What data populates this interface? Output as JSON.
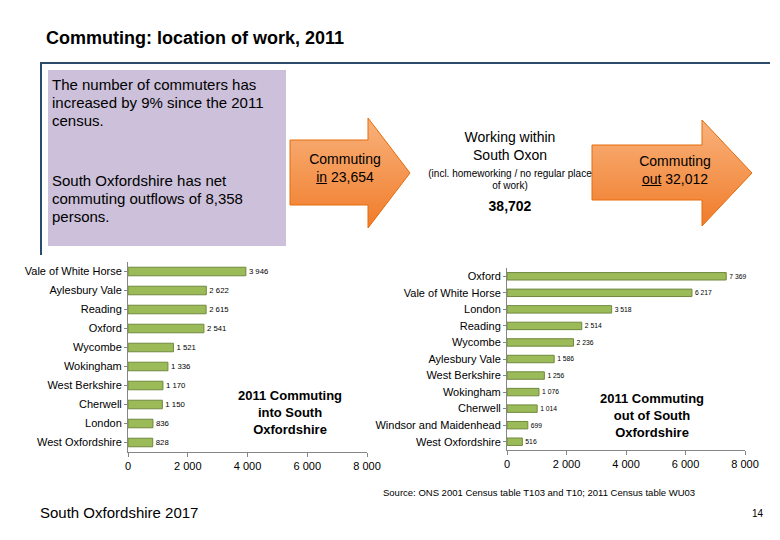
{
  "slide": {
    "title": "Commuting: location of work, 2011",
    "notes": [
      "The number of commuters has increased by 9% since the 2011 census.",
      "South Oxfordshire has net commuting outflows of 8,358 persons."
    ],
    "flows": [
      {
        "label": "Commuting in",
        "value": 23654,
        "value_label": "23,654"
      },
      {
        "label": "Working within South Oxon",
        "note": "(incl. homeworking / no regular place of work)",
        "value": 38702,
        "value_label": "38,702"
      },
      {
        "label": "Commuting out",
        "value": 32012,
        "value_label": "32,012"
      }
    ],
    "source": "Source: ONS 2001 Census table T103 and T10; 2011 Census table WU03",
    "footer": "South Oxfordshire 2017",
    "page": 14
  },
  "chart_data": [
    {
      "type": "bar",
      "orientation": "horizontal",
      "title": "2011 Commuting into South Oxfordshire",
      "categories": [
        "Vale of White Horse",
        "Aylesbury Vale",
        "Reading",
        "Oxford",
        "Wycombe",
        "Wokingham",
        "West Berkshire",
        "Cherwell",
        "London",
        "West Oxfordshire"
      ],
      "values": [
        3946,
        2622,
        2615,
        2541,
        1521,
        1336,
        1170,
        1150,
        836,
        828
      ],
      "value_labels": [
        "3 946",
        "2 622",
        "2 615",
        "2 541",
        "1 521",
        "1 336",
        "1 170",
        "1 150",
        "836",
        "828"
      ],
      "data_labels": true,
      "color": "#9bbb59",
      "grid": false,
      "xlim": [
        0,
        8000
      ],
      "xticks": [
        0,
        {
          "value": 2000,
          "label": "2 000"
        },
        {
          "value": 4000,
          "label": "4 000"
        },
        {
          "value": 6000,
          "label": "6 000"
        },
        {
          "value": 8000,
          "label": "8 000"
        }
      ]
    },
    {
      "type": "bar",
      "orientation": "horizontal",
      "title": "2011 Commuting out of South Oxfordshire",
      "categories": [
        "Oxford",
        "Vale of White Horse",
        "London",
        "Reading",
        "Wycombe",
        "Aylesbury Vale",
        "West Berkshire",
        "Wokingham",
        "Cherwell",
        "Windsor and Maidenhead",
        "West Oxfordshire"
      ],
      "values": [
        7369,
        6217,
        3518,
        2514,
        2236,
        1586,
        1256,
        1076,
        1014,
        699,
        516
      ],
      "value_labels": [
        "7 369",
        "6 217",
        "3 518",
        "2 514",
        "2 236",
        "1 586",
        "1 256",
        "1 076",
        "1 014",
        "699",
        "516"
      ],
      "data_labels": true,
      "color": "#9bbb59",
      "grid": false,
      "xlim": [
        0,
        8000
      ],
      "xticks": [
        0,
        {
          "value": 2000,
          "label": "2 000"
        },
        {
          "value": 4000,
          "label": "4 000"
        },
        {
          "value": 6000,
          "label": "6 000"
        },
        {
          "value": 8000,
          "label": "8 000"
        }
      ]
    }
  ]
}
